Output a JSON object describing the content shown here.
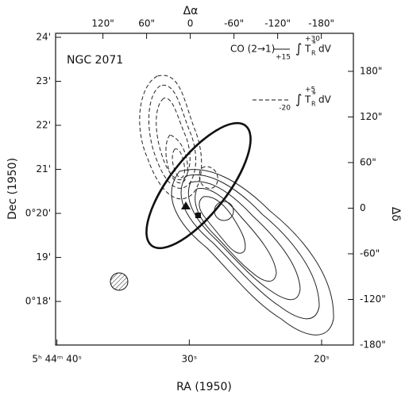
{
  "chart_data": {
    "type": "contour",
    "object_label": "NGC 2071",
    "x2label": "Δα",
    "xlabel": "RA (1950)",
    "ylabel": "Dec (1950)",
    "y2label": "Δδ",
    "xlim": [
      40.1,
      17.6
    ],
    "xticks": [
      {
        "value": 40,
        "label": "5ʰ 44ᵐ 40ˢ"
      },
      {
        "value": 30,
        "label": "30ˢ"
      },
      {
        "value": 20,
        "label": "20ˢ"
      }
    ],
    "x2lim": [
      185,
      -224
    ],
    "x2ticks": [
      {
        "value": 120,
        "label": "120\""
      },
      {
        "value": 60,
        "label": "60\""
      },
      0,
      {
        "value": -60,
        "label": "-60\""
      },
      {
        "value": -120,
        "label": "-120\""
      },
      {
        "value": -180,
        "label": "-180\""
      }
    ],
    "ylim": [
      17.01,
      24.09
    ],
    "yticks": [
      {
        "value": 24,
        "label": "24'"
      },
      {
        "value": 23,
        "label": "23'"
      },
      {
        "value": 22,
        "label": "22'"
      },
      {
        "value": 21,
        "label": "21'"
      },
      {
        "value": 20,
        "label": "0°20'"
      },
      {
        "value": 19,
        "label": "19'"
      },
      {
        "value": 18,
        "label": "0°18'"
      }
    ],
    "y2lim": [
      -180,
      230
    ],
    "y2ticks": [
      {
        "value": 180,
        "label": "180\""
      },
      {
        "value": 120,
        "label": "120\""
      },
      {
        "value": 60,
        "label": "60\""
      },
      0,
      {
        "value": -60,
        "label": "-60\""
      },
      {
        "value": -120,
        "label": "-120\""
      },
      {
        "value": -180,
        "label": "-180\""
      }
    ],
    "legend_molecule": "CO (2→1)",
    "legend": [
      {
        "style": "solid",
        "upper": "+30",
        "lower": "+15"
      },
      {
        "style": "dashed",
        "upper": "+5",
        "lower": "-20"
      }
    ],
    "integral": "∫",
    "integrand": "T",
    "integrand_sub": "R",
    "integrand_sup": "*",
    "differential": "dV"
  }
}
